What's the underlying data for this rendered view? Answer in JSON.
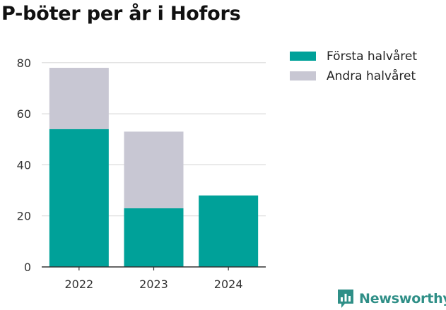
{
  "chart_data": {
    "type": "bar",
    "stacked": true,
    "title": "P-böter per år i Hofors",
    "categories": [
      "2022",
      "2023",
      "2024"
    ],
    "series": [
      {
        "name": "Första halvåret",
        "values": [
          54,
          23,
          28
        ],
        "color": "#00a199"
      },
      {
        "name": "Andra halvåret",
        "values": [
          24,
          30,
          0
        ],
        "color": "#c8c7d3"
      }
    ],
    "yticks": [
      0,
      20,
      40,
      60,
      80
    ],
    "ylim": [
      0,
      85
    ],
    "grid": true,
    "legend_position": "top-right"
  },
  "branding": {
    "logo_text": "Newsworthy",
    "logo_icon": "newsworthy-logo-icon",
    "color": "#2f8f87"
  }
}
